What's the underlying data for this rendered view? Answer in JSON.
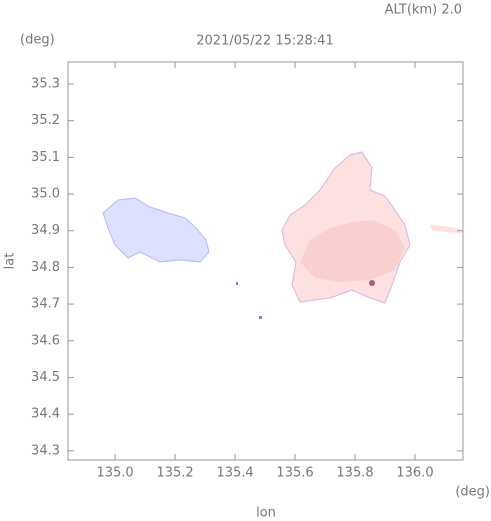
{
  "chart_data": {
    "type": "map",
    "annotation": "ALT(km) 2.0",
    "title": "2021/05/22 15:28:41",
    "y_unit": "(deg)",
    "x_unit": "(deg)",
    "xlabel": "lon",
    "ylabel": "lat",
    "xlim": [
      134.843,
      136.16
    ],
    "ylim": [
      34.275,
      35.36
    ],
    "xticks": [
      {
        "value": 135.0,
        "label": "135.0"
      },
      135.2,
      135.4,
      135.6,
      135.8,
      {
        "value": 136.0,
        "label": "136.0"
      }
    ],
    "yticks": [
      34.3,
      34.4,
      34.5,
      34.6,
      34.7,
      34.8,
      34.9,
      {
        "value": 35.0,
        "label": "35.0"
      },
      35.1,
      35.2,
      35.3
    ]
  }
}
